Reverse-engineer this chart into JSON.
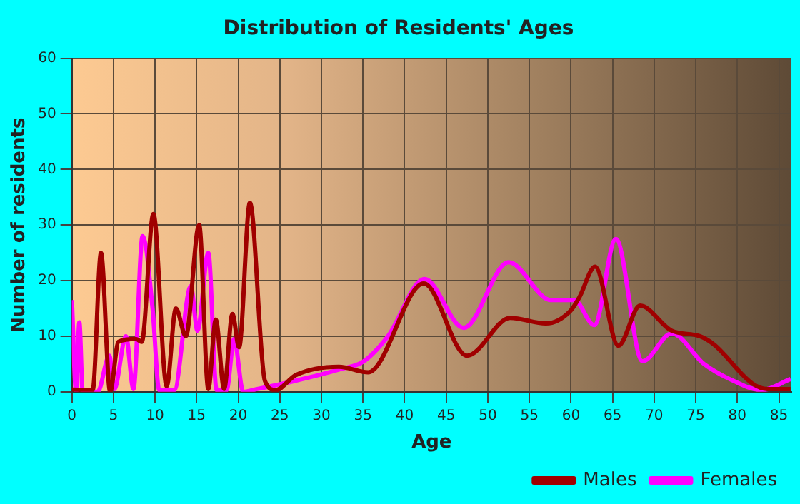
{
  "chart_data": {
    "type": "line",
    "title": "Distribution of Residents' Ages",
    "xlabel": "Age",
    "ylabel": "Number of residents",
    "xlim": [
      0,
      86.5
    ],
    "xticks": [
      0,
      5,
      10,
      15,
      20,
      25,
      30,
      35,
      40,
      45,
      50,
      55,
      60,
      65,
      70,
      75,
      80,
      85
    ],
    "ylim": [
      0,
      60
    ],
    "yticks": [
      0,
      10,
      20,
      30,
      40,
      50,
      60
    ],
    "grid": true,
    "legend": "bottom",
    "marker": "none",
    "line_style": "solid",
    "series": [
      {
        "name": "Males",
        "color": "#a00000",
        "x": [
          0,
          2.5,
          3.5,
          4.6,
          5.6,
          7.7,
          8.4,
          9.8,
          11.4,
          12.5,
          13.7,
          15.3,
          16.4,
          17.3,
          18.3,
          19.3,
          20.1,
          21.4,
          23.2,
          24.5,
          26.9,
          32.1,
          35.6,
          42.3,
          47.5,
          52.7,
          57,
          59.9,
          61,
          62.9,
          65.7,
          68.3,
          72.1,
          75.5,
          77.2,
          81.8,
          83.6,
          86.4
        ],
        "values": [
          0.4,
          0.3,
          25,
          0,
          9,
          9.5,
          9,
          32,
          1,
          15,
          10,
          30,
          0.5,
          13,
          0.5,
          14,
          8,
          34,
          2,
          0.3,
          3,
          4.5,
          3.5,
          19.5,
          6.5,
          13.3,
          12.3,
          14.5,
          17,
          22.5,
          8.3,
          15.5,
          11,
          10,
          8.5,
          1.5,
          0.5,
          0.5
        ]
      },
      {
        "name": "Females",
        "color": "#ff00ff",
        "x": [
          0,
          0.5,
          0.9,
          1.3,
          3.1,
          4.5,
          5.1,
          6.5,
          7.4,
          8.5,
          9.7,
          10.5,
          12.3,
          14.3,
          15.1,
          16.4,
          17.4,
          18.6,
          19.5,
          20.6,
          22.3,
          26.9,
          32.1,
          35.1,
          38,
          42.4,
          47.1,
          52.5,
          57.6,
          60.4,
          62.8,
          65.4,
          68.6,
          72.1,
          76,
          79.5,
          82.9,
          86.4
        ],
        "values": [
          16.5,
          0,
          12.5,
          0,
          0,
          6.5,
          0.5,
          10,
          0.5,
          28,
          15,
          0.3,
          0.3,
          19,
          11,
          25,
          0.3,
          0.3,
          9.5,
          0,
          0.5,
          2,
          4,
          5.5,
          10,
          20.3,
          11.5,
          23.3,
          16.5,
          16.5,
          12,
          27.5,
          5.5,
          10.5,
          5,
          2,
          0.3,
          2.3
        ]
      }
    ]
  }
}
